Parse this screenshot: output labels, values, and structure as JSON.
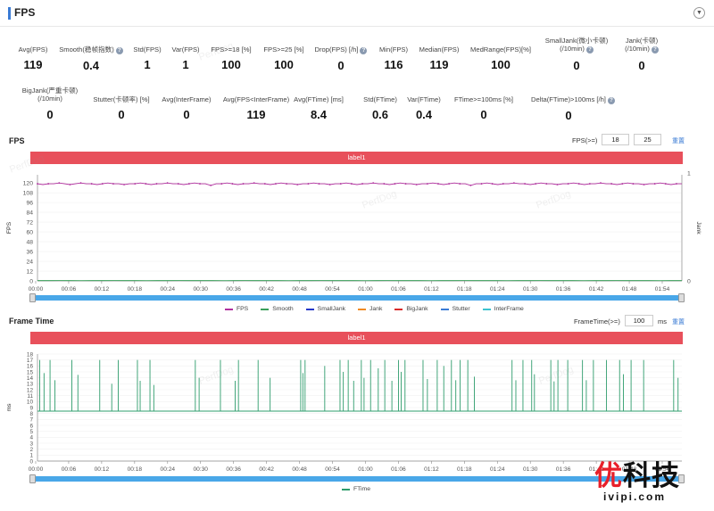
{
  "header": {
    "title": "FPS",
    "collapse_icon": "chevron-down-icon"
  },
  "metrics_row1": [
    {
      "label": "Avg(FPS)",
      "value": "119",
      "help": false,
      "sub": ""
    },
    {
      "label": "Smooth(稳帧指数)",
      "value": "0.4",
      "help": true,
      "sub": ""
    },
    {
      "label": "Std(FPS)",
      "value": "1",
      "help": false,
      "sub": ""
    },
    {
      "label": "Var(FPS)",
      "value": "1",
      "help": false,
      "sub": ""
    },
    {
      "label": "FPS>=18 [%]",
      "value": "100",
      "help": false,
      "sub": ""
    },
    {
      "label": "FPS>=25 [%]",
      "value": "100",
      "help": false,
      "sub": ""
    },
    {
      "label": "Drop(FPS) [/h]",
      "value": "0",
      "help": true,
      "sub": ""
    },
    {
      "label": "Min(FPS)",
      "value": "116",
      "help": false,
      "sub": ""
    },
    {
      "label": "Median(FPS)",
      "value": "119",
      "help": false,
      "sub": ""
    },
    {
      "label": "MedRange(FPS)[%]",
      "value": "100",
      "help": false,
      "sub": ""
    },
    {
      "label": "SmallJank(微小卡顿)",
      "value": "0",
      "help": true,
      "sub": "(/10min)"
    },
    {
      "label": "Jank(卡顿)",
      "value": "0",
      "help": true,
      "sub": "(/10min)"
    }
  ],
  "metrics_row2": [
    {
      "label": "BigJank(严重卡顿)",
      "value": "0",
      "help": false,
      "sub": "(/10min)"
    },
    {
      "label": "Stutter(卡顿率) [%]",
      "value": "0",
      "help": false,
      "sub": ""
    },
    {
      "label": "Avg(InterFrame)",
      "value": "0",
      "help": false,
      "sub": ""
    },
    {
      "label": "Avg(FPS<InterFrame)",
      "value": "119",
      "help": false,
      "sub": ""
    },
    {
      "label": "Avg(FTime) [ms]",
      "value": "8.4",
      "help": false,
      "sub": ""
    },
    {
      "label": "Std(FTime)",
      "value": "0.6",
      "help": false,
      "sub": ""
    },
    {
      "label": "Var(FTime)",
      "value": "0.4",
      "help": false,
      "sub": ""
    },
    {
      "label": "FTime>=100ms [%]",
      "value": "0",
      "help": false,
      "sub": ""
    },
    {
      "label": "Delta(FTime)>100ms [/h]",
      "value": "0",
      "help": true,
      "sub": ""
    }
  ],
  "fps_section": {
    "title": "FPS",
    "threshold_label": "FPS(>=)",
    "threshold1": "18",
    "threshold2": "25",
    "reset_label": "重置",
    "band_label": "label1",
    "y_label": "FPS",
    "y2_label": "Jank"
  },
  "ftime_section": {
    "title": "Frame Time",
    "threshold_label": "FrameTime(>=)",
    "threshold": "100",
    "unit": "ms",
    "reset_label": "重置",
    "band_label": "label1",
    "y_label": "ms"
  },
  "watermark": "PerfDog",
  "brand": {
    "cn_1": "优",
    "cn_2": "科技",
    "en": "ivipi.com"
  },
  "chart_data": [
    {
      "type": "line",
      "title": "FPS",
      "xlabel": "",
      "ylabel": "FPS",
      "y2label": "Jank",
      "ylim": [
        0,
        130
      ],
      "y2lim": [
        0,
        1
      ],
      "yticks": [
        0,
        12,
        24,
        36,
        48,
        60,
        72,
        84,
        96,
        108,
        120
      ],
      "y2ticks": [
        0,
        1
      ],
      "x_ticks": [
        "00:00",
        "00:06",
        "00:12",
        "00:18",
        "00:24",
        "00:30",
        "00:36",
        "00:42",
        "00:48",
        "00:54",
        "01:00",
        "01:06",
        "01:12",
        "01:18",
        "01:24",
        "01:30",
        "01:36",
        "01:42",
        "01:48",
        "01:54"
      ],
      "x_range_seconds": [
        0,
        118
      ],
      "legend": [
        {
          "name": "FPS",
          "color": "#b0309e"
        },
        {
          "name": "Smooth",
          "color": "#3a9f5a"
        },
        {
          "name": "SmallJank",
          "color": "#2538c8"
        },
        {
          "name": "Jank",
          "color": "#f08a24"
        },
        {
          "name": "BigJank",
          "color": "#d92b2b"
        },
        {
          "name": "Stutter",
          "color": "#3a7bd5"
        },
        {
          "name": "InterFrame",
          "color": "#3cc3cf"
        }
      ],
      "legend_position": "bottom",
      "series": [
        {
          "name": "FPS",
          "values": [
            119,
            118,
            119,
            119,
            120,
            119,
            118,
            119,
            120,
            119,
            119,
            118,
            119,
            120,
            119,
            119,
            118,
            119,
            119,
            120,
            119,
            118,
            119,
            119,
            120,
            119,
            119,
            118,
            119,
            120,
            119,
            119,
            117,
            119,
            119,
            120,
            119,
            118,
            119,
            119,
            120,
            119,
            119,
            118,
            119,
            120,
            119,
            119,
            118,
            119,
            119,
            120,
            119,
            119,
            118,
            119,
            119,
            120,
            119,
            118,
            119,
            119,
            120,
            119,
            119,
            118,
            119,
            120,
            119,
            119,
            118,
            119,
            119,
            120,
            119,
            118,
            119,
            120,
            119,
            119,
            117,
            119,
            119,
            120,
            119,
            118,
            119,
            119,
            120,
            119,
            119,
            118,
            119,
            120,
            119,
            119,
            118,
            119,
            119,
            120,
            119,
            118,
            119,
            119,
            120,
            119,
            119,
            118,
            119,
            120,
            119,
            119,
            118,
            119,
            119,
            120,
            119,
            118,
            119,
            119
          ]
        },
        {
          "name": "Smooth",
          "values": [
            0.4,
            0.4,
            0.5,
            0.4,
            0.3,
            0.4,
            0.4,
            0.5,
            0.4,
            0.4,
            0.3,
            0.4,
            0.4,
            0.5,
            0.4,
            0.4,
            0.4,
            0.3,
            0.4,
            0.5,
            0.4,
            0.4,
            0.4,
            0.3,
            0.4,
            0.4,
            0.5,
            0.4,
            0.4,
            0.4,
            0.3,
            0.4,
            0.5,
            0.4,
            0.4,
            0.4,
            0.3,
            0.4,
            0.4,
            0.5,
            0.4,
            0.4,
            0.4,
            0.3,
            0.4,
            0.4,
            0.5,
            0.4,
            0.4,
            0.4,
            0.3,
            0.4,
            0.4,
            0.5,
            0.4,
            0.4,
            0.4,
            0.3,
            0.4,
            0.4
          ]
        }
      ]
    },
    {
      "type": "line",
      "title": "Frame Time",
      "ylabel": "ms",
      "ylim": [
        0,
        18
      ],
      "yticks": [
        0,
        1,
        2,
        3,
        4,
        5,
        6,
        7,
        8,
        9,
        10,
        11,
        12,
        13,
        14,
        15,
        16,
        17,
        18
      ],
      "x_ticks": [
        "00:00",
        "00:06",
        "00:12",
        "00:18",
        "00:24",
        "00:30",
        "00:36",
        "00:42",
        "00:48",
        "00:54",
        "01:00",
        "01:06",
        "01:12",
        "01:18",
        "01:24",
        "01:30",
        "01:36",
        "01:42",
        "01:48",
        "01:54"
      ],
      "x_range_seconds": [
        0,
        118
      ],
      "baseline": 8.4,
      "legend": [
        {
          "name": "FTime",
          "color": "#2e9c6c"
        }
      ],
      "legend_position": "bottom",
      "series": [
        {
          "name": "FTime",
          "spikes": [
            {
              "t": 0.4,
              "v": 17
            },
            {
              "t": 1.2,
              "v": 14.8
            },
            {
              "t": 2.3,
              "v": 17
            },
            {
              "t": 3.2,
              "v": 13.6
            },
            {
              "t": 6.3,
              "v": 17
            },
            {
              "t": 7.4,
              "v": 14.5
            },
            {
              "t": 11.4,
              "v": 17
            },
            {
              "t": 13.6,
              "v": 13
            },
            {
              "t": 14.8,
              "v": 17
            },
            {
              "t": 18.3,
              "v": 17
            },
            {
              "t": 18.8,
              "v": 13.5
            },
            {
              "t": 20.6,
              "v": 17
            },
            {
              "t": 21.3,
              "v": 12.8
            },
            {
              "t": 28.9,
              "v": 17
            },
            {
              "t": 29.6,
              "v": 14
            },
            {
              "t": 33.5,
              "v": 17
            },
            {
              "t": 36.2,
              "v": 13.5
            },
            {
              "t": 36.8,
              "v": 17
            },
            {
              "t": 40.4,
              "v": 17
            },
            {
              "t": 42.6,
              "v": 14
            },
            {
              "t": 48.2,
              "v": 17
            },
            {
              "t": 48.6,
              "v": 14.8
            },
            {
              "t": 49.0,
              "v": 17
            },
            {
              "t": 52.6,
              "v": 16
            },
            {
              "t": 55.4,
              "v": 17
            },
            {
              "t": 56.0,
              "v": 15
            },
            {
              "t": 56.9,
              "v": 17
            },
            {
              "t": 57.9,
              "v": 13.5
            },
            {
              "t": 59.3,
              "v": 17
            },
            {
              "t": 59.8,
              "v": 14
            },
            {
              "t": 61.0,
              "v": 17
            },
            {
              "t": 62.4,
              "v": 15.6
            },
            {
              "t": 63.6,
              "v": 17
            },
            {
              "t": 64.9,
              "v": 13.5
            },
            {
              "t": 66.1,
              "v": 17
            },
            {
              "t": 66.6,
              "v": 15
            },
            {
              "t": 67.3,
              "v": 17
            },
            {
              "t": 70.6,
              "v": 17
            },
            {
              "t": 71.4,
              "v": 13.8
            },
            {
              "t": 73.2,
              "v": 17
            },
            {
              "t": 74.4,
              "v": 16
            },
            {
              "t": 75.8,
              "v": 17
            },
            {
              "t": 76.6,
              "v": 13.6
            },
            {
              "t": 77.4,
              "v": 17
            },
            {
              "t": 78.8,
              "v": 17
            },
            {
              "t": 80.0,
              "v": 14.2
            },
            {
              "t": 86.9,
              "v": 17
            },
            {
              "t": 87.6,
              "v": 13.6
            },
            {
              "t": 88.9,
              "v": 17
            },
            {
              "t": 90.5,
              "v": 17
            },
            {
              "t": 91.0,
              "v": 14.6
            },
            {
              "t": 94.0,
              "v": 17
            },
            {
              "t": 94.6,
              "v": 13.4
            },
            {
              "t": 95.3,
              "v": 17
            },
            {
              "t": 97.1,
              "v": 17
            },
            {
              "t": 99.8,
              "v": 17
            },
            {
              "t": 100.5,
              "v": 13.6
            },
            {
              "t": 101.8,
              "v": 17
            },
            {
              "t": 104.2,
              "v": 17
            },
            {
              "t": 106.6,
              "v": 17
            },
            {
              "t": 107.3,
              "v": 14.6
            },
            {
              "t": 108.7,
              "v": 17
            },
            {
              "t": 111.0,
              "v": 17
            },
            {
              "t": 116.5,
              "v": 17
            },
            {
              "t": 117.3,
              "v": 14
            }
          ]
        }
      ]
    }
  ]
}
